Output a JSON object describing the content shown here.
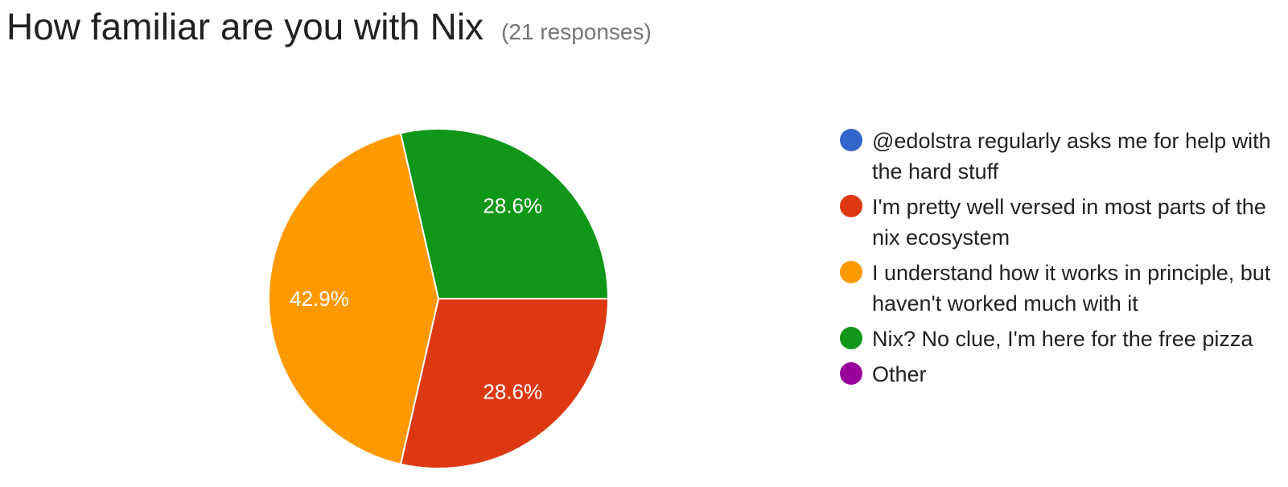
{
  "header": {
    "title": "How familiar are you with Nix",
    "subtitle": "(21 responses)"
  },
  "chart_data": {
    "type": "pie",
    "title": "How familiar are you with Nix",
    "subtitle": "(21 responses)",
    "slices": [
      {
        "label": "@edolstra regularly asks me for help with the hard stuff",
        "value": 0,
        "percent_label": "",
        "color": "#3366cc"
      },
      {
        "label": "I'm pretty well versed in most parts of the nix ecosystem",
        "value": 28.6,
        "percent_label": "28.6%",
        "color": "#dc3912"
      },
      {
        "label": "I understand how it works in principle, but haven't worked much with it",
        "value": 42.9,
        "percent_label": "42.9%",
        "color": "#ff9900"
      },
      {
        "label": "Nix? No clue, I'm here for the free pizza",
        "value": 28.6,
        "percent_label": "28.6%",
        "color": "#109618"
      },
      {
        "label": "Other",
        "value": 0,
        "percent_label": "",
        "color": "#990099"
      }
    ],
    "legend_position": "right"
  }
}
